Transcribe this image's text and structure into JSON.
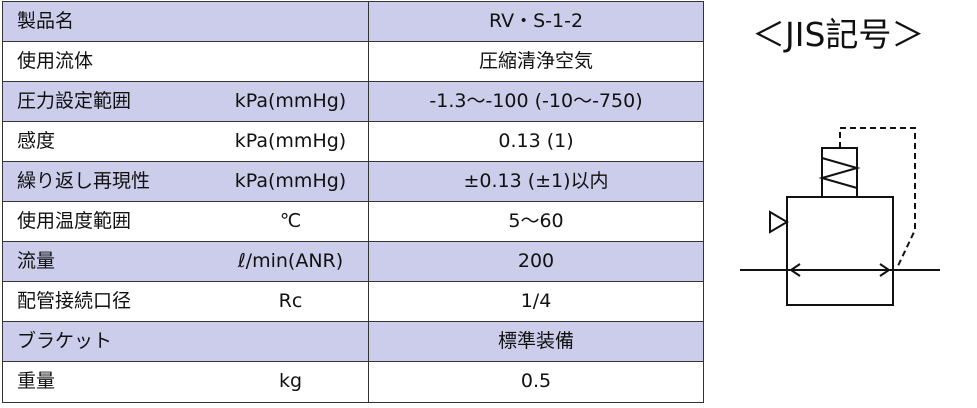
{
  "table": {
    "rows": [
      [
        "製品名",
        null,
        "RV・S-1-2"
      ],
      [
        "使用流体",
        null,
        "圧縮清浄空気"
      ],
      [
        "圧力設定範囲",
        "kPa(mmHg)",
        "-1.3～-100 (-10～-750)"
      ],
      [
        "感度",
        "kPa(mmHg)",
        "0.13 (1)"
      ],
      [
        "繰り返し再現性",
        "kPa(mmHg)",
        "±0.13 (±1)以内"
      ],
      [
        "使用温度範囲",
        "℃",
        "5～60"
      ],
      [
        "流量",
        "ℓ/min(ANR)",
        "200"
      ],
      [
        "配管接続口径",
        "Rc",
        "1/4"
      ],
      [
        "ブラケット",
        null,
        "標準装備"
      ],
      [
        "重量",
        "kg",
        "0.5"
      ]
    ]
  },
  "symbol": {
    "title": "＜JIS記号＞"
  }
}
